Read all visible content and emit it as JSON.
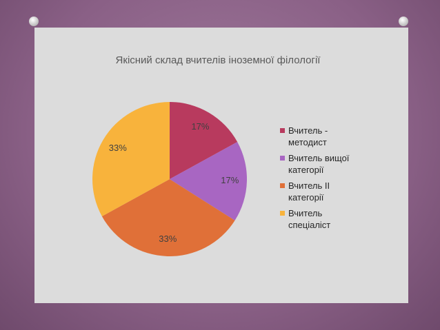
{
  "chart_data": {
    "type": "pie",
    "title": "Якісний склад вчителів іноземної філології",
    "categories": [
      "Вчитель - методист",
      "Вчитель вищої категорії",
      "Вчитель ІІ категорії",
      "Вчитель спеціаліст"
    ],
    "values": [
      17,
      17,
      33,
      33
    ],
    "value_labels": [
      "17%",
      "17%",
      "33%",
      "33%"
    ],
    "colors": [
      "#b83a5e",
      "#a866c2",
      "#e07038",
      "#f8b33c"
    ],
    "legend": "right"
  }
}
